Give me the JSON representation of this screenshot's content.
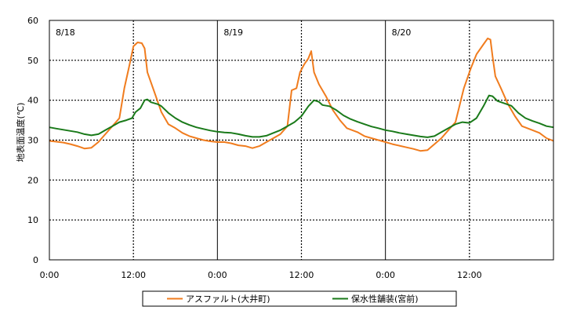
{
  "chart_data": {
    "type": "line",
    "title": "",
    "xlabel": "",
    "ylabel": "地表面温度(℃)",
    "ylim": [
      0,
      60
    ],
    "yticks": [
      0,
      10,
      20,
      30,
      40,
      50,
      60
    ],
    "xlim": [
      0,
      72
    ],
    "xtick_labels": [
      "0:00",
      "12:00",
      "0:00",
      "12:00",
      "0:00",
      "12:00"
    ],
    "xtick_hours": [
      0,
      12,
      24,
      36,
      48,
      60
    ],
    "day_labels": [
      {
        "text": "8/18",
        "hour": 0
      },
      {
        "text": "8/19",
        "hour": 24
      },
      {
        "text": "8/20",
        "hour": 48
      }
    ],
    "grid": true,
    "legend_position": "bottom",
    "series": [
      {
        "name": "アスファルト(大井町)",
        "color": "#f07c1e",
        "points": [
          [
            0,
            29.8
          ],
          [
            1,
            29.6
          ],
          [
            2,
            29.4
          ],
          [
            3,
            29.0
          ],
          [
            4,
            28.5
          ],
          [
            5,
            27.9
          ],
          [
            6,
            28.1
          ],
          [
            7,
            29.5
          ],
          [
            8,
            31.5
          ],
          [
            9,
            33.5
          ],
          [
            10,
            35.5
          ],
          [
            10.7,
            43.0
          ],
          [
            11.4,
            48.5
          ],
          [
            12,
            53.5
          ],
          [
            12.6,
            54.5
          ],
          [
            13.2,
            54.3
          ],
          [
            13.6,
            53.0
          ],
          [
            14,
            47.0
          ],
          [
            15,
            42.0
          ],
          [
            16,
            37.0
          ],
          [
            17,
            34.0
          ],
          [
            18,
            33.0
          ],
          [
            19,
            31.8
          ],
          [
            20,
            31.0
          ],
          [
            21,
            30.5
          ],
          [
            22,
            30.0
          ],
          [
            23,
            29.7
          ],
          [
            24,
            29.5
          ],
          [
            25,
            29.5
          ],
          [
            26,
            29.2
          ],
          [
            27,
            28.7
          ],
          [
            28,
            28.5
          ],
          [
            29,
            28.0
          ],
          [
            30,
            28.5
          ],
          [
            31,
            29.5
          ],
          [
            32,
            30.5
          ],
          [
            33,
            31.5
          ],
          [
            34,
            33.5
          ],
          [
            34.6,
            42.5
          ],
          [
            35.3,
            43.0
          ],
          [
            35.8,
            47.0
          ],
          [
            36.4,
            49.0
          ],
          [
            37,
            50.5
          ],
          [
            37.4,
            52.3
          ],
          [
            37.8,
            47.0
          ],
          [
            38.5,
            44.0
          ],
          [
            39.5,
            41.0
          ],
          [
            40.5,
            37.5
          ],
          [
            41.5,
            35.0
          ],
          [
            42.5,
            33.0
          ],
          [
            44,
            32.0
          ],
          [
            45,
            31.0
          ],
          [
            46,
            30.5
          ],
          [
            47,
            30.0
          ],
          [
            48,
            29.5
          ],
          [
            49,
            29.0
          ],
          [
            50,
            28.6
          ],
          [
            51,
            28.2
          ],
          [
            52,
            27.8
          ],
          [
            53,
            27.3
          ],
          [
            54,
            27.5
          ],
          [
            55,
            29.0
          ],
          [
            56,
            30.5
          ],
          [
            57,
            32.5
          ],
          [
            58,
            34.5
          ],
          [
            59.2,
            43.0
          ],
          [
            60.2,
            48.0
          ],
          [
            61,
            51.5
          ],
          [
            62,
            54.0
          ],
          [
            62.6,
            55.5
          ],
          [
            63,
            55.2
          ],
          [
            63.3,
            51.0
          ],
          [
            63.7,
            46.0
          ],
          [
            64.5,
            43.0
          ],
          [
            65.5,
            39.0
          ],
          [
            66.5,
            36.0
          ],
          [
            67.5,
            33.5
          ],
          [
            69,
            32.5
          ],
          [
            70,
            31.8
          ],
          [
            71,
            30.5
          ],
          [
            72,
            29.8
          ]
        ]
      },
      {
        "name": "保水性舗装(宮前)",
        "color": "#1a7a1a",
        "points": [
          [
            0,
            33.2
          ],
          [
            1,
            32.9
          ],
          [
            2,
            32.6
          ],
          [
            3,
            32.3
          ],
          [
            4,
            32.0
          ],
          [
            5,
            31.5
          ],
          [
            6,
            31.2
          ],
          [
            7,
            31.5
          ],
          [
            8,
            32.5
          ],
          [
            9,
            33.5
          ],
          [
            10,
            34.5
          ],
          [
            11,
            35.0
          ],
          [
            11.8,
            35.5
          ],
          [
            12.3,
            37.0
          ],
          [
            13,
            38.0
          ],
          [
            13.6,
            40.0
          ],
          [
            14,
            40.2
          ],
          [
            14.5,
            39.5
          ],
          [
            15.5,
            39.0
          ],
          [
            16,
            38.5
          ],
          [
            17,
            36.8
          ],
          [
            18,
            35.5
          ],
          [
            19,
            34.5
          ],
          [
            20,
            33.8
          ],
          [
            21,
            33.2
          ],
          [
            22,
            32.8
          ],
          [
            23,
            32.4
          ],
          [
            24,
            32.1
          ],
          [
            25,
            31.9
          ],
          [
            26,
            31.8
          ],
          [
            27,
            31.5
          ],
          [
            28,
            31.1
          ],
          [
            29,
            30.8
          ],
          [
            30,
            30.8
          ],
          [
            31,
            31.1
          ],
          [
            32,
            31.8
          ],
          [
            33,
            32.5
          ],
          [
            34,
            33.5
          ],
          [
            35,
            34.5
          ],
          [
            36,
            36.0
          ],
          [
            37,
            38.5
          ],
          [
            37.8,
            40.0
          ],
          [
            38.5,
            39.6
          ],
          [
            39,
            38.8
          ],
          [
            40,
            38.5
          ],
          [
            41,
            37.5
          ],
          [
            42,
            36.2
          ],
          [
            43,
            35.3
          ],
          [
            44,
            34.6
          ],
          [
            45,
            34.0
          ],
          [
            46,
            33.4
          ],
          [
            47,
            33.0
          ],
          [
            48,
            32.5
          ],
          [
            49,
            32.2
          ],
          [
            50,
            31.8
          ],
          [
            51,
            31.5
          ],
          [
            52,
            31.2
          ],
          [
            53,
            30.9
          ],
          [
            54,
            30.7
          ],
          [
            55,
            31.0
          ],
          [
            56,
            32.0
          ],
          [
            57,
            33.0
          ],
          [
            58,
            34.0
          ],
          [
            59,
            34.5
          ],
          [
            60,
            34.3
          ],
          [
            61,
            35.5
          ],
          [
            62,
            38.5
          ],
          [
            62.8,
            41.2
          ],
          [
            63.3,
            41.0
          ],
          [
            64,
            39.8
          ],
          [
            65,
            39.2
          ],
          [
            66,
            38.6
          ],
          [
            67,
            36.8
          ],
          [
            68,
            35.5
          ],
          [
            69,
            34.8
          ],
          [
            70,
            34.2
          ],
          [
            71,
            33.5
          ],
          [
            72,
            33.2
          ]
        ]
      }
    ]
  }
}
